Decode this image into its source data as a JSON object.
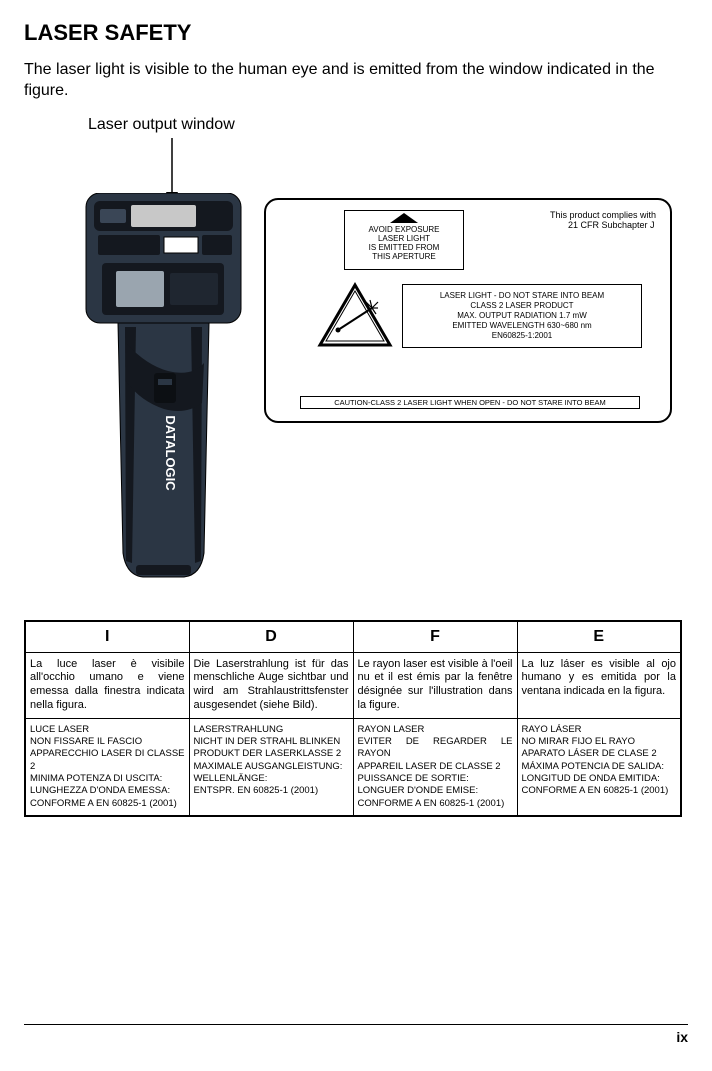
{
  "title": "LASER SAFETY",
  "intro": "The laser light is visible to the human eye and is emitted from the window indicated in the figure.",
  "caption": "Laser output window",
  "compliance_l1": "This product complies with",
  "compliance_l2": "21 CFR Subchapter J",
  "aperture_l1": "AVOID EXPOSURE",
  "aperture_l2": "LASER LIGHT",
  "aperture_l3": "IS EMITTED FROM",
  "aperture_l4": "THIS APERTURE",
  "laser_info_l1": "LASER LIGHT - DO NOT STARE INTO BEAM",
  "laser_info_l2": "CLASS 2 LASER PRODUCT",
  "laser_info_l3": "MAX. OUTPUT RADIATION 1.7 mW",
  "laser_info_l4": "EMITTED WAVELENGTH 630~680 nm",
  "laser_info_l5": "EN60825-1:2001",
  "caution_bar": "CAUTION-CLASS 2 LASER LIGHT WHEN OPEN - DO NOT STARE INTO BEAM",
  "table": {
    "headers": [
      "I",
      "D",
      "F",
      "E"
    ],
    "row1": [
      "La luce laser è visibile all'occhio umano e viene emessa dalla finestra indicata nella figura.",
      "Die Laserstrahlung ist für das menschliche Auge sichtbar und wird am Strahlaustrittsfenster ausgesendet (siehe Bild).",
      "Le rayon laser est visible à l'oeil nu et il est émis par la fenêtre désignée sur l'illustration dans la figure.",
      "La luz láser es visible al ojo humano y es emitida por la ventana indicada en la figura."
    ],
    "row2": [
      "LUCE LASER\nNON FISSARE IL FASCIO\nAPPARECCHIO LASER DI CLASSE 2\nMINIMA POTENZA DI USCITA:\nLUNGHEZZA D'ONDA EMESSA:\nCONFORME A EN 60825-1 (2001)",
      "LASERSTRAHLUNG\nNICHT IN DER STRAHL BLINKEN\nPRODUKT DER LASERKLASSE 2\nMAXIMALE AUSGANGLEISTUNG:\nWELLENLÄNGE:\nENTSPR. EN 60825-1 (2001)",
      "RAYON LASER\nEVITER DE REGARDER LE RAYON\nAPPAREIL LASER DE CLASSE 2\nPUISSANCE DE SORTIE:\nLONGUER D'ONDE EMISE:\nCONFORME A EN 60825-1 (2001)",
      "RAYO LÁSER\nNO MIRAR FIJO EL RAYO\nAPARATO LÁSER DE CLASE 2\nMÁXIMA POTENCIA DE SALIDA:\nLONGITUD DE ONDA EMITIDA:\nCONFORME A EN 60825-1 (2001)"
    ]
  },
  "page_number": "ix",
  "colors": {
    "device_body": "#2b3644",
    "device_dark": "#14181f",
    "device_label": "#c8c8c8",
    "screen": "#9aa5af"
  }
}
